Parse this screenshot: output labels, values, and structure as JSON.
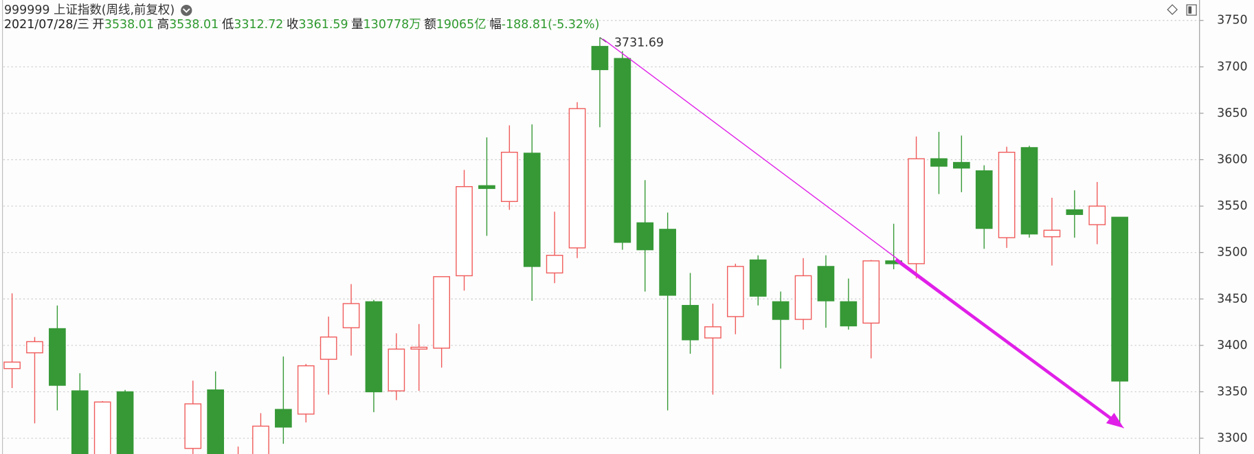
{
  "chart_data": {
    "type": "candlestick",
    "title": "999999 上证指数(周线,前复权)",
    "info": [
      {
        "label": null,
        "value": "2021/07/28/三"
      },
      {
        "label": "开",
        "value": "3538.01"
      },
      {
        "label": "高",
        "value": "3538.01"
      },
      {
        "label": "低",
        "value": "3312.72"
      },
      {
        "label": "收",
        "value": "3361.59"
      },
      {
        "label": "量",
        "value": "130778万"
      },
      {
        "label": "额",
        "value": "19065亿"
      },
      {
        "label": "幅",
        "value": "-188.81(-5.32%)"
      }
    ],
    "annotations": [
      "3731.69"
    ],
    "categories": [
      null,
      null,
      null,
      null,
      null,
      null,
      null,
      null,
      null,
      null,
      null,
      null,
      null,
      null,
      null,
      null,
      null,
      null,
      null,
      null,
      null,
      null,
      null,
      null,
      null,
      null,
      null,
      null,
      null,
      null,
      null,
      null,
      null,
      null,
      null,
      null,
      null,
      null,
      null,
      null,
      null,
      null,
      null,
      null,
      null,
      null,
      null,
      null,
      null,
      null
    ],
    "open": [
      3375,
      3392,
      3418,
      3351,
      3278,
      3350,
      null,
      null,
      3289,
      3352,
      3270,
      3278,
      3331,
      3326,
      3385,
      3419,
      3447,
      3351,
      3396,
      3397,
      3475,
      3572,
      3555,
      3607,
      3478,
      3505,
      3722,
      3709,
      3532,
      3525,
      3443,
      3408,
      3431,
      3492,
      3447,
      3428,
      3485,
      3447,
      3424,
      3491,
      3488,
      3601,
      3597,
      3588,
      3516,
      3613,
      3517,
      3546,
      3530,
      3538.01
    ],
    "high": [
      3456,
      3409,
      3443,
      3370,
      3340,
      3352,
      null,
      null,
      3362,
      3372,
      3291,
      3327,
      3388,
      3380,
      3431,
      3466,
      3449,
      3413,
      3423,
      3474,
      3589,
      3624,
      3637,
      3638,
      3544,
      3662,
      3731.69,
      3717,
      3578,
      3543,
      3478,
      3445,
      3488,
      3497,
      3458,
      3494,
      3497,
      3472,
      3492,
      3531,
      3625,
      3630,
      3626,
      3594,
      3614,
      3615,
      3559,
      3567,
      3576,
      3538.01
    ],
    "low": [
      3354,
      3316,
      3330,
      3260,
      3270,
      3270,
      null,
      null,
      3283,
      3270,
      3260,
      3270,
      3294,
      3317,
      3347,
      3389,
      3328,
      3341,
      3351,
      3376,
      3459,
      3518,
      3546,
      3448,
      3467,
      3494,
      3635,
      3503,
      3458,
      3330,
      3391,
      3347,
      3412,
      3443,
      3375,
      3417,
      3419,
      3417,
      3386,
      3482,
      3472,
      3563,
      3565,
      3504,
      3505,
      3516,
      3486,
      3516,
      3509,
      3312.72
    ],
    "close": [
      3382,
      3404,
      3357,
      3275,
      3339,
      3280,
      null,
      null,
      3337,
      3280,
      3280,
      3313,
      3312,
      3378,
      3409,
      3445,
      3350,
      3396,
      3398,
      3474,
      3571,
      3569,
      3608,
      3485,
      3497,
      3655,
      3697,
      3511,
      3503,
      3454,
      3406,
      3420,
      3485,
      3453,
      3428,
      3475,
      3448,
      3421,
      3491,
      3488,
      3601,
      3593,
      3591,
      3526,
      3608,
      3520,
      3524,
      3541,
      3550,
      3361.59
    ],
    "up_color": "#f05a5a",
    "down_color": "#369936",
    "arrow_color": "#e020e8",
    "ylim": [
      3283,
      3772
    ],
    "yticks": [
      3300,
      3350,
      3400,
      3450,
      3500,
      3550,
      3600,
      3650,
      3700,
      3750
    ],
    "grid": true
  }
}
